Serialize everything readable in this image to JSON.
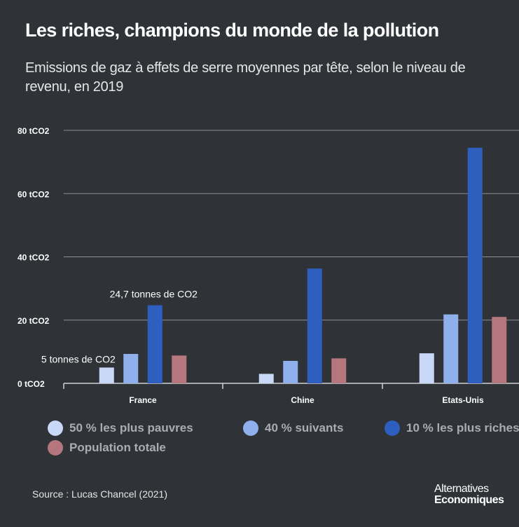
{
  "header": {
    "title": "Les riches, champions du monde de la pollution",
    "subtitle": "Emissions de gaz à effets de serre moyennes par tête, selon le niveau de revenu, en 2019"
  },
  "chart_data": {
    "type": "bar",
    "categories": [
      "France",
      "Chine",
      "Etats-Unis"
    ],
    "series": [
      {
        "name": "50 % les plus pauvres",
        "color": "#c9d8f7",
        "values": [
          5,
          3,
          9.5
        ]
      },
      {
        "name": "40 % suivants",
        "color": "#8fb0ec",
        "values": [
          9.3,
          7.1,
          21.8
        ]
      },
      {
        "name": "10 % les plus riches",
        "color": "#2e5fbf",
        "values": [
          24.7,
          36.3,
          74.5
        ]
      },
      {
        "name": "Population totale",
        "color": "#b6767d",
        "values": [
          8.8,
          7.9,
          21
        ]
      }
    ],
    "y_ticks": [
      {
        "value": 0,
        "label": "0 tCO2"
      },
      {
        "value": 20,
        "label": "20 tCO2"
      },
      {
        "value": 40,
        "label": "40 tCO2"
      },
      {
        "value": 60,
        "label": "60 tCO2"
      },
      {
        "value": 80,
        "label": "80 tCO2"
      }
    ],
    "ylim": [
      0,
      80
    ],
    "grid": true,
    "legend_position": "bottom",
    "annotations": [
      {
        "text": "24,7 tonnes de CO2",
        "category": 0,
        "series": 2
      },
      {
        "text": "5 tonnes de CO2",
        "category": 0,
        "series": 0
      }
    ]
  },
  "footer": {
    "source": "Source :  Lucas Chancel (2021)",
    "logo_line1": "Alternatives",
    "logo_line2": "Economiques"
  }
}
